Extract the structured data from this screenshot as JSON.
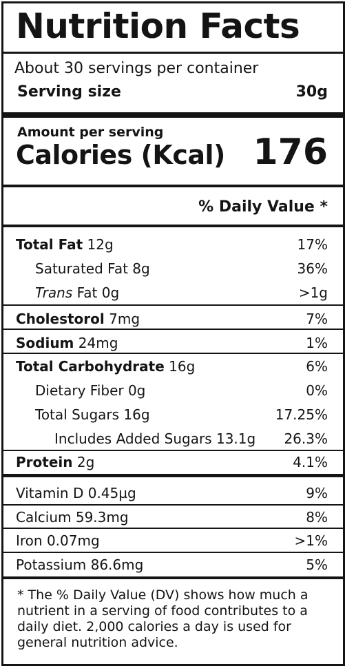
{
  "title": "Nutrition Facts",
  "servings_per_container": "About 30 servings per container",
  "serving_size_label": "Serving size",
  "serving_size_value": "30g",
  "amount_per_serving": "Amount per serving",
  "calories_label": "Calories (Kcal)",
  "calories_value": "176",
  "daily_value_header": "% Daily Value *",
  "nutrients": {
    "total_fat": {
      "label": "Total Fat",
      "amount": " 12g",
      "dv": "17%"
    },
    "saturated_fat": {
      "label": "Saturated Fat 8g",
      "dv": "36%"
    },
    "trans_fat": {
      "label_italic": "Trans",
      "label_rest": " Fat 0g",
      "dv": ">1g"
    },
    "cholesterol": {
      "label": "Cholestorol",
      "amount": " 7mg",
      "dv": "7%"
    },
    "sodium": {
      "label": "Sodium",
      "amount": " 24mg",
      "dv": "1%"
    },
    "total_carbohydrate": {
      "label": "Total Carbohydrate",
      "amount": " 16g",
      "dv": "6%"
    },
    "dietary_fiber": {
      "label": "Dietary Fiber 0g",
      "dv": "0%"
    },
    "total_sugars": {
      "label": "Total Sugars 16g",
      "dv": "17.25%"
    },
    "added_sugars": {
      "label": "Includes Added Sugars 13.1g",
      "dv": "26.3%"
    },
    "protein": {
      "label": "Protein",
      "amount": " 2g",
      "dv": "4.1%"
    }
  },
  "vitamins": {
    "vitamin_d": {
      "label": "Vitamin D 0.45µg",
      "dv": "9%"
    },
    "calcium": {
      "label": "Calcium 59.3mg",
      "dv": "8%"
    },
    "iron": {
      "label": "Iron 0.07mg",
      "dv": ">1%"
    },
    "potassium": {
      "label": "Potassium 86.6mg",
      "dv": "5%"
    }
  },
  "footnote": "* The % Daily Value (DV) shows how much a nutrient in a serving of food contributes to a daily diet. 2,000 calories a day is used for general nutrition advice."
}
